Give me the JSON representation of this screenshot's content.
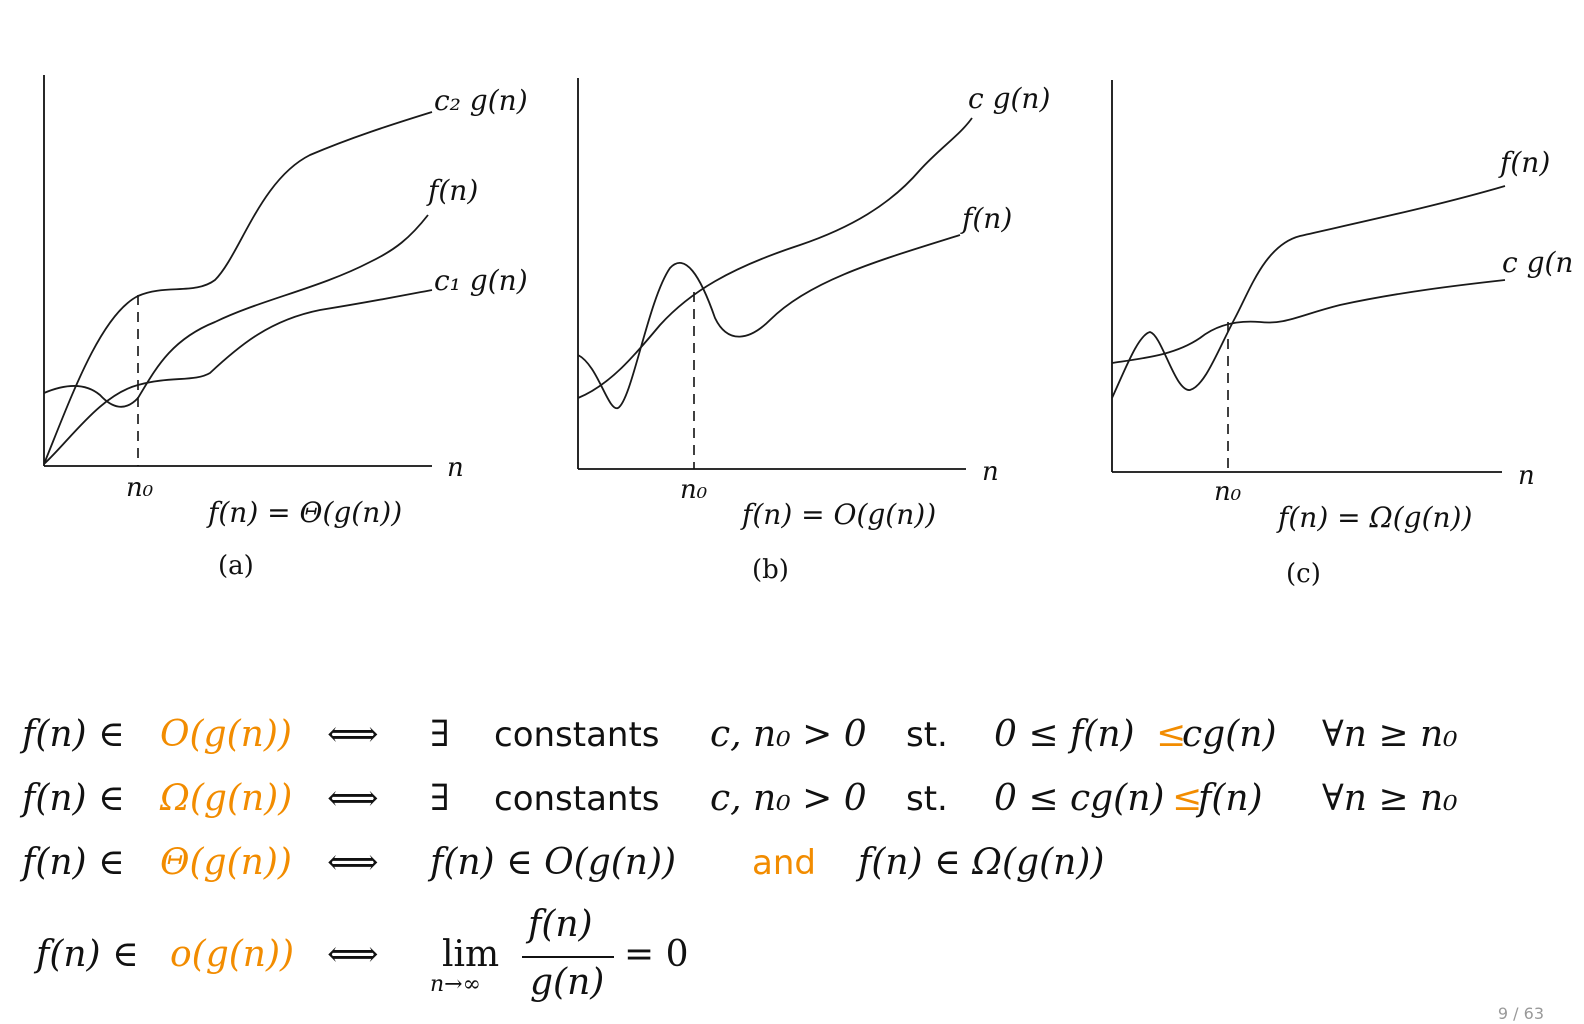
{
  "panels": [
    {
      "id": "a",
      "caption": "(a)",
      "relation": "f(n) = Θ(g(n))",
      "x_axis_label": "n",
      "threshold_label": "n₀",
      "curve_labels": [
        "c₂ g(n)",
        "f(n)",
        "c₁ g(n)"
      ]
    },
    {
      "id": "b",
      "caption": "(b)",
      "relation": "f(n) = O(g(n))",
      "x_axis_label": "n",
      "threshold_label": "n₀",
      "curve_labels": [
        "c g(n)",
        "f(n)"
      ]
    },
    {
      "id": "c",
      "caption": "(c)",
      "relation": "f(n) = Ω(g(n))",
      "x_axis_label": "n",
      "threshold_label": "n₀",
      "curve_labels": [
        "f(n)",
        "c g(n"
      ]
    }
  ],
  "definitions": {
    "big_o": {
      "lhs": "f(n) ∈",
      "set": "O(g(n))",
      "iff": "⟺",
      "exists": "∃",
      "constants": "constants",
      "consts": "c, n₀ > 0",
      "st": "st.",
      "cond_left": "0 ≤ f(n)",
      "cond_op": "≤",
      "cond_right": "cg(n)",
      "forall": "∀n ≥ n₀"
    },
    "big_omega": {
      "lhs": "f(n) ∈",
      "set": "Ω(g(n))",
      "iff": "⟺",
      "exists": "∃",
      "constants": "constants",
      "consts": "c, n₀ > 0",
      "st": "st.",
      "cond_left": "0 ≤ cg(n)",
      "cond_op": "≤",
      "cond_right": "f(n)",
      "forall": "∀n ≥ n₀"
    },
    "big_theta": {
      "lhs": "f(n) ∈",
      "set": "Θ(g(n))",
      "iff": "⟺",
      "left": "f(n) ∈ O(g(n))",
      "and": "and",
      "right": "f(n) ∈ Ω(g(n))"
    },
    "little_o": {
      "lhs": "f(n) ∈",
      "set": "o(g(n))",
      "iff": "⟺",
      "lim": "lim",
      "lim_sub": "n→∞",
      "numerator": "f(n)",
      "denominator": "g(n)",
      "equals": "= 0"
    }
  },
  "colors": {
    "accent": "#f28c00",
    "ink": "#111111"
  },
  "page_number": "9 / 63"
}
